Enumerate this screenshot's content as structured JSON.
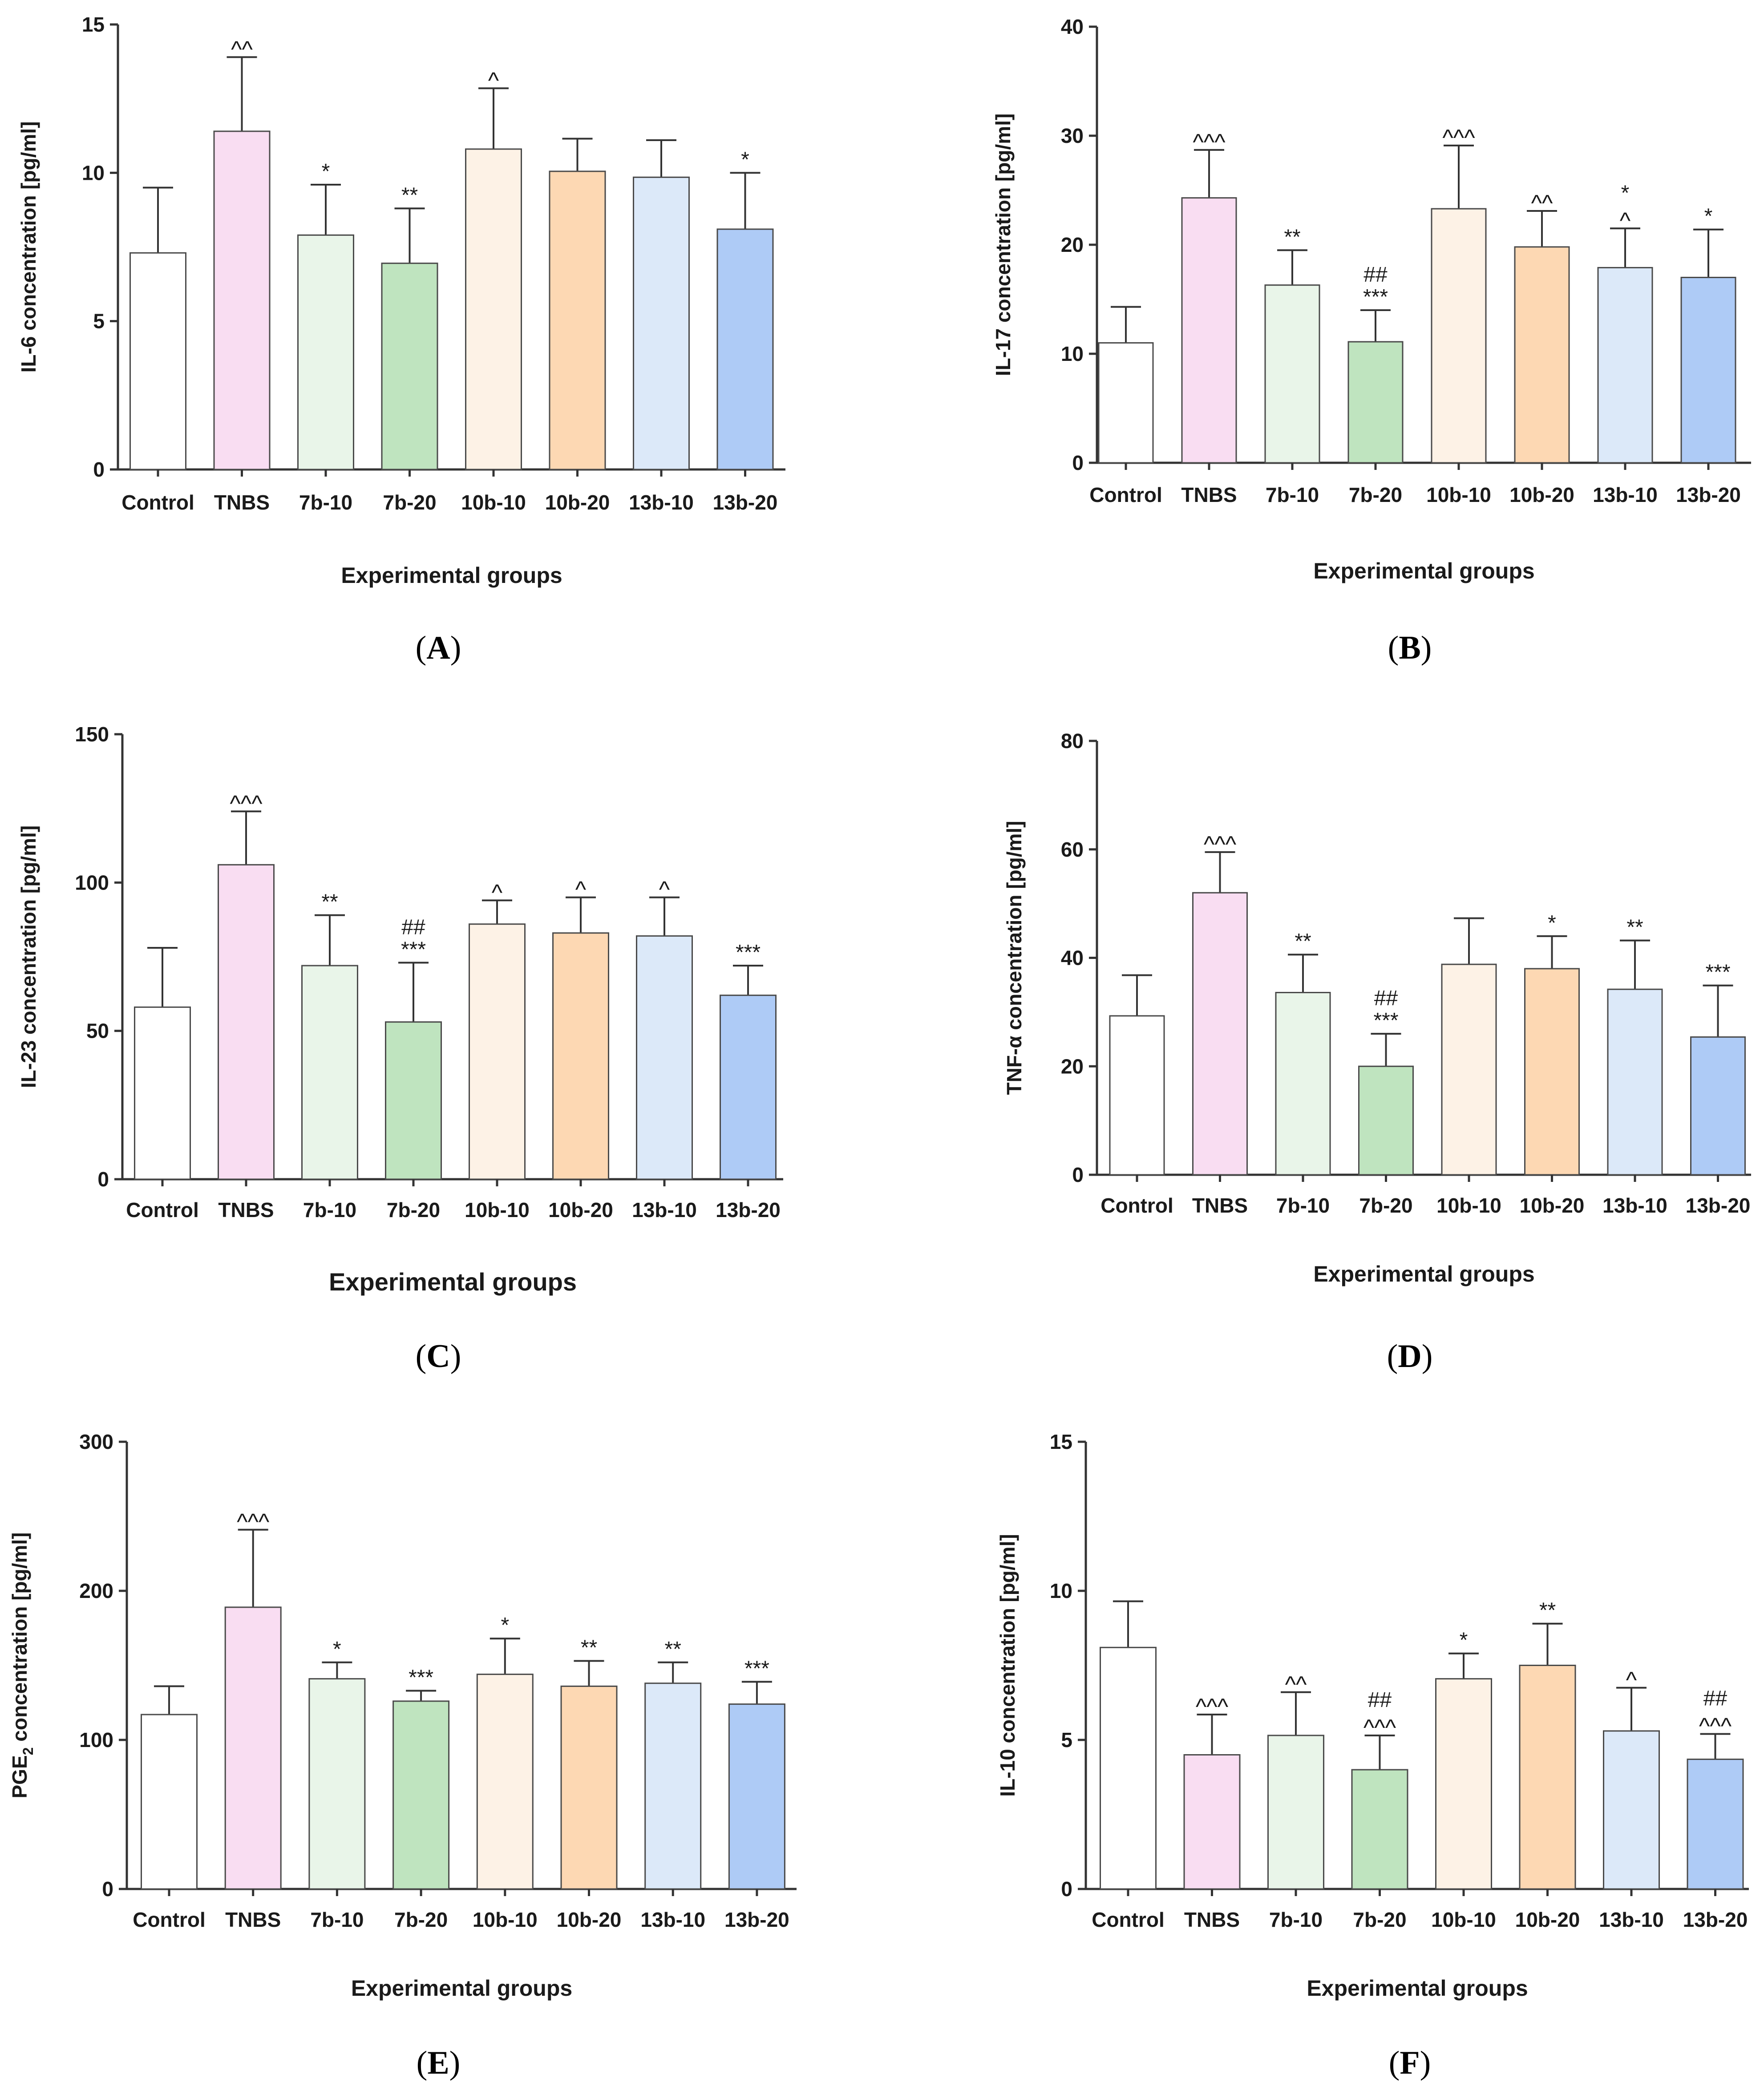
{
  "figure": {
    "colors": [
      "#ffffff",
      "#f9ddf2",
      "#e9f5e9",
      "#bfe4bf",
      "#fdf2e6",
      "#fdd8b3",
      "#dce9f9",
      "#aecbf6"
    ],
    "edge_color": "#4a4a4a"
  },
  "chart_data": [
    {
      "type": "bar",
      "panel": "A",
      "ylabel": "IL-6 concentration [pg/ml]",
      "xlabel": "Experimental groups",
      "categories": [
        "Control",
        "TNBS",
        "7b-10",
        "7b-20",
        "10b-10",
        "10b-20",
        "13b-10",
        "13b-20"
      ],
      "values": [
        7.3,
        11.4,
        7.9,
        6.95,
        10.8,
        10.05,
        9.85,
        8.1
      ],
      "errors": [
        2.2,
        2.5,
        1.7,
        1.85,
        2.05,
        1.1,
        1.25,
        1.9
      ],
      "annotations": [
        "",
        "^^",
        "*",
        "**",
        "^",
        "",
        "",
        "*"
      ],
      "ylim": [
        0,
        15
      ],
      "yticks": [
        0,
        5,
        10,
        15
      ]
    },
    {
      "type": "bar",
      "panel": "B",
      "ylabel": "IL-17 concentration [pg/ml]",
      "xlabel": "Experimental groups",
      "categories": [
        "Control",
        "TNBS",
        "7b-10",
        "7b-20",
        "10b-10",
        "10b-20",
        "13b-10",
        "13b-20"
      ],
      "values": [
        11.0,
        24.3,
        16.3,
        11.1,
        23.3,
        19.8,
        17.9,
        17.0
      ],
      "errors": [
        3.3,
        4.4,
        3.2,
        2.9,
        5.8,
        3.3,
        3.6,
        4.4
      ],
      "annotations": [
        "",
        "^^^",
        "**",
        "##\n***",
        "^^^",
        "^^",
        "*\n^",
        "*"
      ],
      "ylim": [
        0,
        40
      ],
      "yticks": [
        0,
        10,
        20,
        30,
        40
      ]
    },
    {
      "type": "bar",
      "panel": "C",
      "ylabel": "IL-23 concentration [pg/ml]",
      "xlabel": "Experimental groups",
      "categories": [
        "Control",
        "TNBS",
        "7b-10",
        "7b-20",
        "10b-10",
        "10b-20",
        "13b-10",
        "13b-20"
      ],
      "values": [
        58,
        106,
        72,
        53,
        86,
        83,
        82,
        62
      ],
      "errors": [
        20,
        18,
        17,
        20,
        8,
        12,
        13,
        10
      ],
      "annotations": [
        "",
        "^^^",
        "**",
        "##\n***",
        "^",
        "^",
        "^",
        "***"
      ],
      "ylim": [
        0,
        150
      ],
      "yticks": [
        0,
        50,
        100,
        150
      ]
    },
    {
      "type": "bar",
      "panel": "D",
      "ylabel": "TNF-α concentration [pg/ml]",
      "xlabel": "Experimental groups",
      "categories": [
        "Control",
        "TNBS",
        "7b-10",
        "7b-20",
        "10b-10",
        "10b-20",
        "13b-10",
        "13b-20"
      ],
      "values": [
        29.3,
        52,
        33.6,
        20,
        38.8,
        38,
        34.2,
        25.4
      ],
      "errors": [
        7.5,
        7.5,
        7,
        6,
        8.5,
        6,
        9,
        9.5
      ],
      "annotations": [
        "",
        "^^^",
        "**",
        "##\n***",
        "",
        "*",
        "**",
        "***"
      ],
      "ylim": [
        0,
        80
      ],
      "yticks": [
        0,
        20,
        40,
        60,
        80
      ]
    },
    {
      "type": "bar",
      "panel": "E",
      "ylabel": "PGE",
      "ylabel_sub": "2",
      "ylabel_rest": " concentration [pg/ml]",
      "xlabel": "Experimental groups",
      "categories": [
        "Control",
        "TNBS",
        "7b-10",
        "7b-20",
        "10b-10",
        "10b-20",
        "13b-10",
        "13b-20"
      ],
      "values": [
        117,
        189,
        141,
        126,
        144,
        136,
        138,
        124
      ],
      "errors": [
        19,
        52,
        11,
        7,
        24,
        17,
        14,
        15
      ],
      "annotations": [
        "",
        "^^^",
        "*",
        "***",
        "*",
        "**",
        "**",
        "***"
      ],
      "ylim": [
        0,
        300
      ],
      "yticks": [
        0,
        100,
        200,
        300
      ]
    },
    {
      "type": "bar",
      "panel": "F",
      "ylabel": "IL-10 concentration [pg/ml]",
      "xlabel": "Experimental groups",
      "categories": [
        "Control",
        "TNBS",
        "7b-10",
        "7b-20",
        "10b-10",
        "10b-20",
        "13b-10",
        "13b-20"
      ],
      "values": [
        8.1,
        4.5,
        5.15,
        4.0,
        7.05,
        7.5,
        5.3,
        4.35
      ],
      "errors": [
        1.55,
        1.35,
        1.45,
        1.15,
        0.85,
        1.4,
        1.45,
        0.85
      ],
      "annotations": [
        "",
        "^^^",
        "^^",
        "##\n^^^",
        "*",
        "**",
        "^",
        "##\n^^^"
      ],
      "ylim": [
        0,
        15
      ],
      "yticks": [
        0,
        5,
        10,
        15
      ]
    }
  ],
  "panel_labels": [
    "(A)",
    "(B)",
    "(C)",
    "(D)",
    "(E)",
    "(F)"
  ]
}
